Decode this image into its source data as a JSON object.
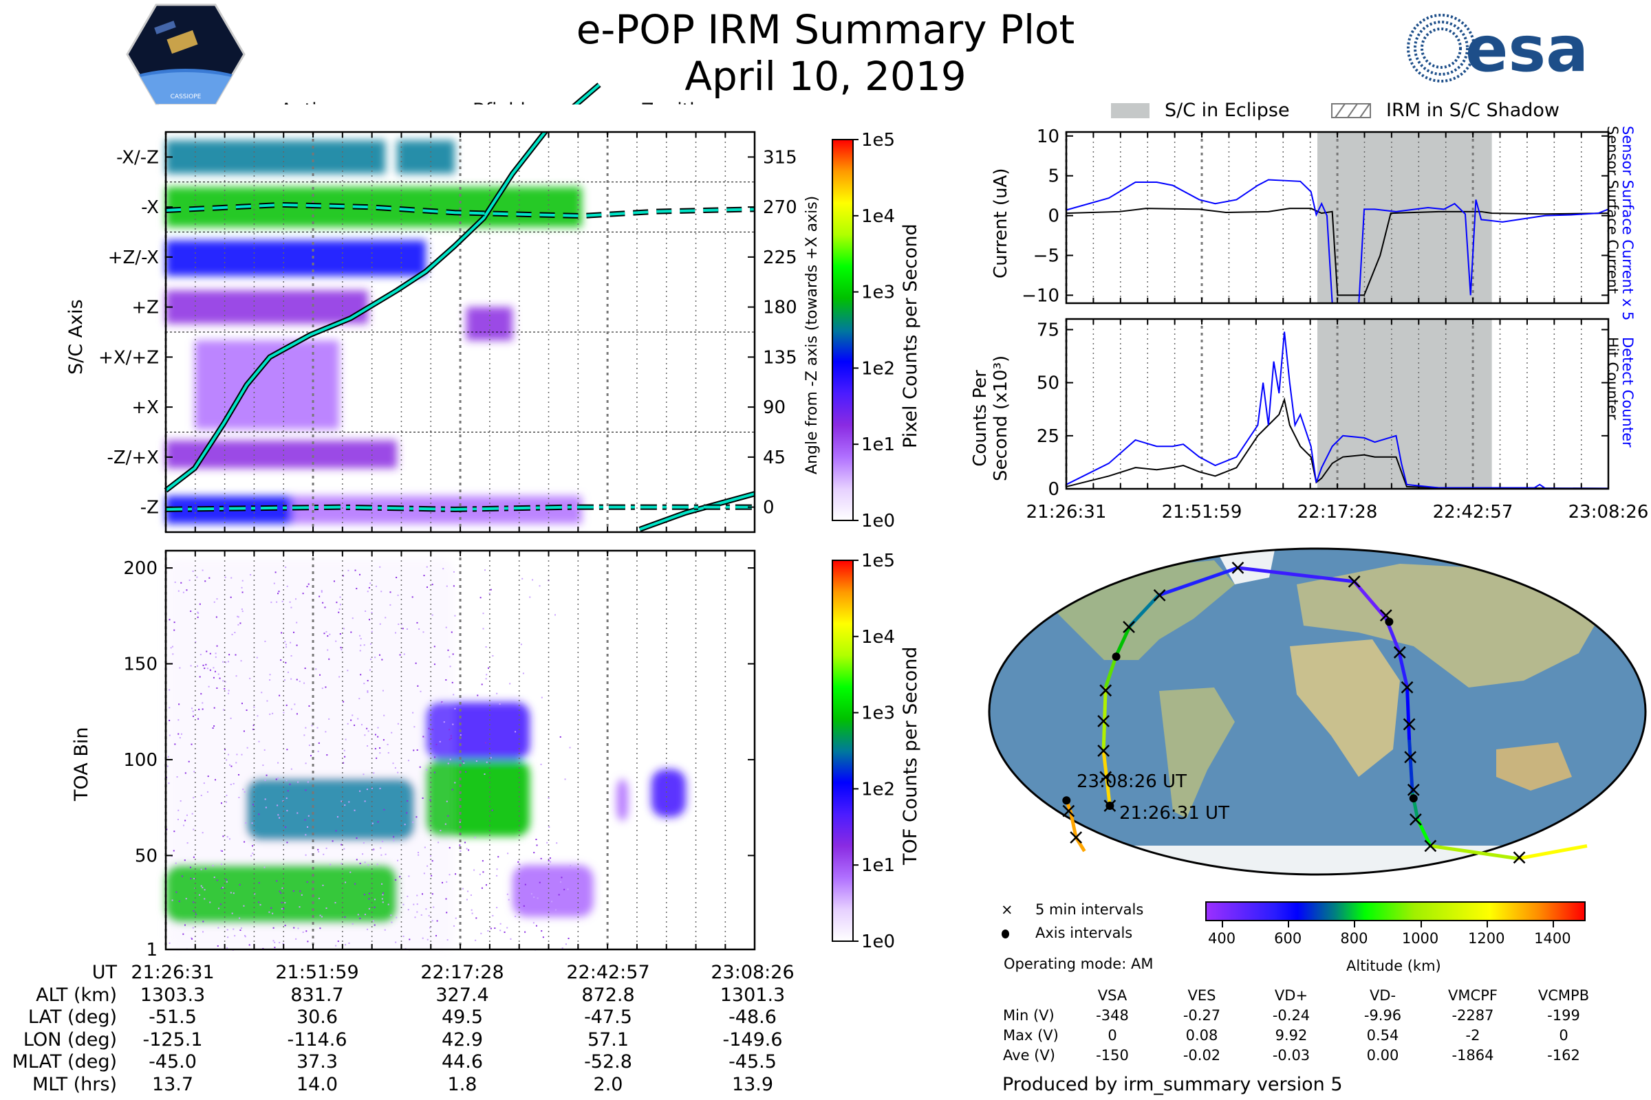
{
  "header": {
    "title": "e-POP IRM Summary Plot",
    "date": "April 10, 2019",
    "left_logo": "CASSIOPE",
    "right_logo": "esa"
  },
  "legend_top_left": {
    "anti_ram": "Anti-ram",
    "bfield": "Bfield",
    "zenith": "Zenith"
  },
  "legend_top_right": {
    "eclipse": "S/C in Eclipse",
    "shadow": "IRM in S/C Shadow"
  },
  "colors": {
    "blue": "#0000ff",
    "black": "#000000",
    "eclipse": "#c5c8c8",
    "cyan_line": "#00e5c8"
  },
  "chart_data": [
    {
      "type": "heatmap",
      "name": "pixel-spectrogram",
      "ylabel": "S/C Axis",
      "y2label": "Angle from -Z axis (towards +X axis)",
      "clabel": "Pixel Counts per Second",
      "ctick_labels": [
        "1e0",
        "1e1",
        "1e2",
        "1e3",
        "1e4",
        "1e5"
      ],
      "yticks_left": [
        "-X/-Z",
        "-X",
        "+Z/-X",
        "+Z",
        "+X/+Z",
        "+X",
        "-Z/+X",
        "-Z"
      ],
      "yticks_right": [
        "315",
        "270",
        "225",
        "180",
        "135",
        "90",
        "45",
        "0"
      ],
      "ytick_values": [
        315,
        270,
        225,
        180,
        135,
        90,
        45,
        0
      ],
      "ylim": [
        -22.5,
        337.5
      ],
      "xlim_min": [
        0,
        101.9
      ],
      "regions": [
        {
          "t": [
            0,
            38
          ],
          "y": [
            300,
            330
          ],
          "log": 2.6
        },
        {
          "t": [
            40,
            50
          ],
          "y": [
            300,
            330
          ],
          "log": 2.5
        },
        {
          "t": [
            0,
            72
          ],
          "y": [
            252,
            288
          ],
          "log": 2.8
        },
        {
          "t": [
            0,
            45
          ],
          "y": [
            208,
            240
          ],
          "log": 2.0
        },
        {
          "t": [
            0,
            35
          ],
          "y": [
            165,
            195
          ],
          "log": 1.3
        },
        {
          "t": [
            52,
            60
          ],
          "y": [
            150,
            180
          ],
          "log": 1.2
        },
        {
          "t": [
            5,
            30
          ],
          "y": [
            70,
            150
          ],
          "log": 0.8
        },
        {
          "t": [
            0,
            40
          ],
          "y": [
            35,
            60
          ],
          "log": 1.2
        },
        {
          "t": [
            0,
            22
          ],
          "y": [
            -15,
            10
          ],
          "log": 2.2
        },
        {
          "t": [
            22,
            72
          ],
          "y": [
            -15,
            10
          ],
          "log": 1.0
        }
      ],
      "bfield": [
        [
          0,
          15
        ],
        [
          5,
          35
        ],
        [
          10,
          75
        ],
        [
          14,
          110
        ],
        [
          18,
          135
        ],
        [
          25,
          155
        ],
        [
          32,
          170
        ],
        [
          40,
          195
        ],
        [
          45,
          212
        ],
        [
          50,
          235
        ],
        [
          55,
          260
        ],
        [
          60,
          300
        ],
        [
          66,
          340
        ],
        [
          75,
          380
        ],
        [
          82,
          -20
        ],
        [
          90,
          -5
        ],
        [
          101.9,
          12
        ]
      ],
      "anti_ram": [
        [
          0,
          267
        ],
        [
          20,
          272
        ],
        [
          35,
          270
        ],
        [
          50,
          265
        ],
        [
          72,
          262
        ],
        [
          85,
          266
        ],
        [
          101.9,
          268
        ]
      ],
      "zenith": [
        [
          0,
          -2
        ],
        [
          30,
          0
        ],
        [
          50,
          -2
        ],
        [
          70,
          0
        ],
        [
          101.9,
          0
        ]
      ]
    },
    {
      "type": "heatmap",
      "name": "tof-spectrogram",
      "ylabel": "TOA Bin",
      "clabel": "TOF Counts per Second",
      "ctick_labels": [
        "1e0",
        "1e1",
        "1e2",
        "1e3",
        "1e4",
        "1e5"
      ],
      "yticks": [
        "1",
        "50",
        "100",
        "150",
        "200"
      ],
      "ytick_values": [
        1,
        50,
        100,
        150,
        200
      ],
      "ylim": [
        1,
        209
      ],
      "xlim_min": [
        0,
        101.9
      ],
      "regions": [
        {
          "t": [
            0,
            40
          ],
          "y": [
            15,
            45
          ],
          "log": 2.9
        },
        {
          "t": [
            14,
            43
          ],
          "y": [
            58,
            90
          ],
          "log": 2.6
        },
        {
          "t": [
            45,
            63
          ],
          "y": [
            60,
            100
          ],
          "log": 3.0
        },
        {
          "t": [
            45,
            63
          ],
          "y": [
            100,
            130
          ],
          "log": 1.8
        },
        {
          "t": [
            60,
            74
          ],
          "y": [
            18,
            45
          ],
          "log": 1.0
        },
        {
          "t": [
            78,
            80
          ],
          "y": [
            68,
            90
          ],
          "log": 0.9
        },
        {
          "t": [
            84,
            90
          ],
          "y": [
            70,
            95
          ],
          "log": 1.7
        },
        {
          "t": [
            0,
            50
          ],
          "y": [
            1,
            205
          ],
          "log": 0.3
        }
      ]
    },
    {
      "type": "line",
      "name": "current",
      "ylabel": "Current (uA)",
      "y2label_blue": "Sensor Surface Current x 5",
      "y2label_black": "Sensor Surface Current",
      "yticks": [
        "10",
        "5",
        "0",
        "−5",
        "−10"
      ],
      "ytick_values": [
        10,
        5,
        0,
        -5,
        -10
      ],
      "ylim": [
        -11,
        10.5
      ],
      "xlim_min": [
        0,
        101.9
      ],
      "eclipse_min": [
        47.2,
        80.0
      ],
      "series": [
        {
          "name": "Sensor Surface Current",
          "color": "#000000",
          "points": [
            [
              0,
              0.3
            ],
            [
              10,
              0.5
            ],
            [
              15,
              0.9
            ],
            [
              25,
              0.8
            ],
            [
              30,
              0.4
            ],
            [
              38,
              0.5
            ],
            [
              42,
              0.9
            ],
            [
              46,
              0.9
            ],
            [
              48,
              0.3
            ],
            [
              50,
              0.5
            ],
            [
              51,
              -10
            ],
            [
              56,
              -10
            ],
            [
              59,
              -5
            ],
            [
              61,
              0.3
            ],
            [
              70,
              0.5
            ],
            [
              78,
              0.5
            ],
            [
              80,
              0.3
            ],
            [
              90,
              0.2
            ],
            [
              101.9,
              0.3
            ]
          ]
        },
        {
          "name": "Sensor Surface Current x 5",
          "color": "#0000ff",
          "points": [
            [
              0,
              0.7
            ],
            [
              8,
              2.2
            ],
            [
              13,
              4.2
            ],
            [
              17,
              4.2
            ],
            [
              20,
              3.8
            ],
            [
              25,
              2
            ],
            [
              28,
              1.5
            ],
            [
              32,
              2
            ],
            [
              36,
              3.8
            ],
            [
              38,
              4.5
            ],
            [
              44,
              4.3
            ],
            [
              46,
              3
            ],
            [
              47,
              0.1
            ],
            [
              48,
              1.5
            ],
            [
              49,
              0
            ],
            [
              50,
              -11
            ],
            [
              55,
              -11
            ],
            [
              56,
              0.8
            ],
            [
              58,
              0.8
            ],
            [
              62,
              0.5
            ],
            [
              68,
              1
            ],
            [
              71,
              0.8
            ],
            [
              73,
              1.5
            ],
            [
              75,
              0.2
            ],
            [
              76,
              -10
            ],
            [
              77,
              2
            ],
            [
              78,
              -0.5
            ],
            [
              82,
              -0.8
            ],
            [
              85,
              -0.5
            ],
            [
              90,
              0
            ],
            [
              95,
              0.1
            ],
            [
              100,
              0.3
            ],
            [
              101.9,
              0.8
            ]
          ]
        }
      ]
    },
    {
      "type": "line",
      "name": "counts",
      "ylabel": "Counts Per",
      "ylabel2": "Second (x10³)",
      "y2label_blue": "Detect Counter",
      "y2label_black": "Hit Counter",
      "yticks": [
        "75",
        "50",
        "25",
        "0"
      ],
      "ytick_values": [
        75,
        50,
        25,
        0
      ],
      "ylim": [
        0,
        80
      ],
      "xlim_min": [
        0,
        101.9
      ],
      "xtick_labels": [
        "21:26:31",
        "21:51:59",
        "22:17:28",
        "22:42:57",
        "23:08:26"
      ],
      "series": [
        {
          "name": "Hit Counter",
          "color": "#000000",
          "points": [
            [
              0,
              1
            ],
            [
              8,
              6
            ],
            [
              13,
              10
            ],
            [
              17,
              9
            ],
            [
              20,
              10
            ],
            [
              22,
              11
            ],
            [
              25,
              8
            ],
            [
              28,
              6
            ],
            [
              32,
              10
            ],
            [
              36,
              25
            ],
            [
              38,
              30
            ],
            [
              40,
              35
            ],
            [
              41,
              42
            ],
            [
              42,
              30
            ],
            [
              44,
              20
            ],
            [
              46,
              15
            ],
            [
              47,
              3
            ],
            [
              48,
              5
            ],
            [
              50,
              12
            ],
            [
              52,
              15
            ],
            [
              56,
              16
            ],
            [
              58,
              15
            ],
            [
              62,
              15
            ],
            [
              64,
              1
            ],
            [
              70,
              0.5
            ],
            [
              101.9,
              0.2
            ]
          ]
        },
        {
          "name": "Detect Counter",
          "color": "#0000ff",
          "points": [
            [
              0,
              2
            ],
            [
              8,
              12
            ],
            [
              13,
              23
            ],
            [
              17,
              20
            ],
            [
              20,
              20
            ],
            [
              22,
              21
            ],
            [
              25,
              15
            ],
            [
              28,
              11
            ],
            [
              32,
              15
            ],
            [
              36,
              30
            ],
            [
              37,
              50
            ],
            [
              38,
              30
            ],
            [
              39,
              60
            ],
            [
              40,
              45
            ],
            [
              41,
              74
            ],
            [
              42,
              50
            ],
            [
              43,
              30
            ],
            [
              44,
              35
            ],
            [
              46,
              20
            ],
            [
              47,
              3
            ],
            [
              48,
              10
            ],
            [
              50,
              20
            ],
            [
              52,
              25
            ],
            [
              56,
              24
            ],
            [
              58,
              22
            ],
            [
              62,
              25
            ],
            [
              63,
              12
            ],
            [
              64,
              2
            ],
            [
              70,
              0.5
            ],
            [
              88,
              0.5
            ],
            [
              89,
              2
            ],
            [
              90,
              0.3
            ],
            [
              101.9,
              0.2
            ]
          ]
        }
      ]
    }
  ],
  "ephemeris": {
    "row_labels": [
      "UT",
      "ALT (km)",
      "LAT (deg)",
      "LON (deg)",
      "MLAT (deg)",
      "MLT (hrs)"
    ],
    "columns": [
      [
        "21:26:31",
        "1303.3",
        "-51.5",
        "-125.1",
        "-45.0",
        "13.7"
      ],
      [
        "21:51:59",
        "831.7",
        "30.6",
        "-114.6",
        "37.3",
        "14.0"
      ],
      [
        "22:17:28",
        "327.4",
        "49.5",
        "42.9",
        "44.6",
        "1.8"
      ],
      [
        "22:42:57",
        "872.8",
        "-47.5",
        "57.1",
        "-52.8",
        "2.0"
      ],
      [
        "23:08:26",
        "1301.3",
        "-48.6",
        "-149.6",
        "-45.5",
        "13.9"
      ]
    ]
  },
  "map": {
    "end_label": "23:08:26 UT",
    "start_label": "21:26:31 UT"
  },
  "map_legend": {
    "cross": "5 min intervals",
    "dot": "Axis intervals"
  },
  "altitude_bar": {
    "label": "Altitude (km)",
    "ticks": [
      "400",
      "600",
      "800",
      "1000",
      "1200",
      "1400"
    ],
    "range": [
      350,
      1500
    ]
  },
  "operating_mode": "Operating mode: AM",
  "voltages": {
    "headers": [
      "VSA",
      "VES",
      "VD+",
      "VD-",
      "VMCPF",
      "VCMPB"
    ],
    "rows": [
      {
        "label": "Min (V)",
        "values": [
          "-348",
          "-0.27",
          "-0.24",
          "-9.96",
          "-2287",
          "-199"
        ]
      },
      {
        "label": "Max (V)",
        "values": [
          "0",
          "0.08",
          "9.92",
          "0.54",
          "-2",
          "0"
        ]
      },
      {
        "label": "Ave (V)",
        "values": [
          "-150",
          "-0.02",
          "-0.03",
          "0.00",
          "-1864",
          "-162"
        ]
      }
    ]
  },
  "footer": "Produced by irm_summary version 5"
}
